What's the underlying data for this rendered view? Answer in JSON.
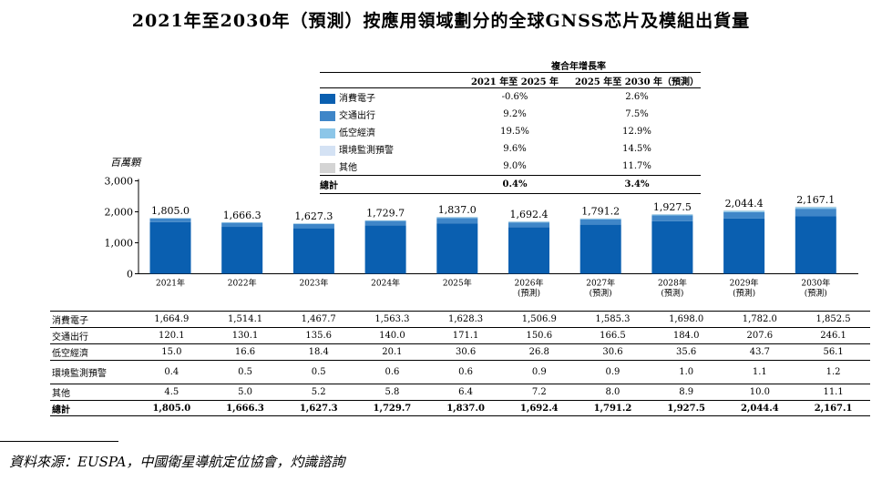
{
  "title": "2021年至2030年（預測）按應用領域劃分的全球GNSS芯片及模組出貨量",
  "cagr_table": {
    "header": "複合年增長率",
    "col1": "2021 年至 2025 年",
    "col2": "2025 年至 2030 年（預測）",
    "rows": [
      {
        "label": "消費電子",
        "c1": "-0.6%",
        "c2": "2.6%",
        "color": "#0a5fb0"
      },
      {
        "label": "交通出行",
        "c1": "9.2%",
        "c2": "7.5%",
        "color": "#3f86c8"
      },
      {
        "label": "低空經濟",
        "c1": "19.5%",
        "c2": "12.9%",
        "color": "#8cc6e8"
      },
      {
        "label": "環境監測預警",
        "c1": "9.6%",
        "c2": "14.5%",
        "color": "#d4e2f4"
      },
      {
        "label": "其他",
        "c1": "9.0%",
        "c2": "11.7%",
        "color": "#d4d4d4"
      }
    ],
    "total": {
      "label": "總計",
      "c1": "0.4%",
      "c2": "3.4%"
    }
  },
  "chart_data": {
    "type": "bar",
    "stacked": true,
    "unit": "百萬顆",
    "ylim": [
      0,
      3000
    ],
    "yticks": [
      "3,000",
      "2,000",
      "1,000",
      "0"
    ],
    "ytick_values": [
      3000,
      2000,
      1000,
      0
    ],
    "categories": [
      "2021年",
      "2022年",
      "2023年",
      "2024年",
      "2025年",
      "2026年",
      "2027年",
      "2028年",
      "2029年",
      "2030年"
    ],
    "category_sublabels": [
      "",
      "",
      "",
      "",
      "",
      "(預測)",
      "(預測)",
      "(預測)",
      "(預測)",
      "(預測)"
    ],
    "series": [
      {
        "name": "消費電子",
        "color": "#0a5fb0",
        "values": [
          1664.9,
          1514.1,
          1467.7,
          1563.3,
          1628.3,
          1506.9,
          1585.3,
          1698.0,
          1782.0,
          1852.5
        ]
      },
      {
        "name": "交通出行",
        "color": "#3f86c8",
        "values": [
          120.1,
          130.1,
          135.6,
          140.0,
          171.1,
          150.6,
          166.5,
          184.0,
          207.6,
          246.1
        ]
      },
      {
        "name": "低空經濟",
        "color": "#8cc6e8",
        "values": [
          15.0,
          16.6,
          18.4,
          20.1,
          30.6,
          26.8,
          30.6,
          35.6,
          43.7,
          56.1
        ]
      },
      {
        "name": "環境監測預警",
        "color": "#d4e2f4",
        "values": [
          0.4,
          0.5,
          0.5,
          0.6,
          0.6,
          0.9,
          0.9,
          1.0,
          1.1,
          1.2
        ]
      },
      {
        "name": "其他",
        "color": "#d4d4d4",
        "values": [
          4.5,
          5.0,
          5.2,
          5.8,
          6.4,
          7.2,
          8.0,
          8.9,
          10.0,
          11.1
        ]
      }
    ],
    "totals": [
      1805.0,
      1666.3,
      1627.3,
      1729.7,
      1837.0,
      1692.4,
      1791.2,
      1927.5,
      2044.4,
      2167.1
    ],
    "total_labels": [
      "1,805.0",
      "1,666.3",
      "1,627.3",
      "1,729.7",
      "1,837.0",
      "1,692.4",
      "1,791.2",
      "1,927.5",
      "2,044.4",
      "2,167.1"
    ]
  },
  "data_table": {
    "rows": [
      {
        "label": "消費電子",
        "cells": [
          "1,664.9",
          "1,514.1",
          "1,467.7",
          "1,563.3",
          "1,628.3",
          "1,506.9",
          "1,585.3",
          "1,698.0",
          "1,782.0",
          "1,852.5"
        ]
      },
      {
        "label": "交通出行",
        "cells": [
          "120.1",
          "130.1",
          "135.6",
          "140.0",
          "171.1",
          "150.6",
          "166.5",
          "184.0",
          "207.6",
          "246.1"
        ]
      },
      {
        "label": "低空經濟",
        "cells": [
          "15.0",
          "16.6",
          "18.4",
          "20.1",
          "30.6",
          "26.8",
          "30.6",
          "35.6",
          "43.7",
          "56.1"
        ]
      },
      {
        "label": "環境監測預警",
        "cells": [
          "0.4",
          "0.5",
          "0.5",
          "0.6",
          "0.6",
          "0.9",
          "0.9",
          "1.0",
          "1.1",
          "1.2"
        ]
      },
      {
        "label": "其他",
        "cells": [
          "4.5",
          "5.0",
          "5.2",
          "5.8",
          "6.4",
          "7.2",
          "8.0",
          "8.9",
          "10.0",
          "11.1"
        ]
      },
      {
        "label": "總計",
        "cells": [
          "1,805.0",
          "1,666.3",
          "1,627.3",
          "1,729.7",
          "1,837.0",
          "1,692.4",
          "1,791.2",
          "1,927.5",
          "2,044.4",
          "2,167.1"
        ]
      }
    ]
  },
  "source": "資料來源：EUSPA，中國衛星導航定位協會，灼識諮詢"
}
